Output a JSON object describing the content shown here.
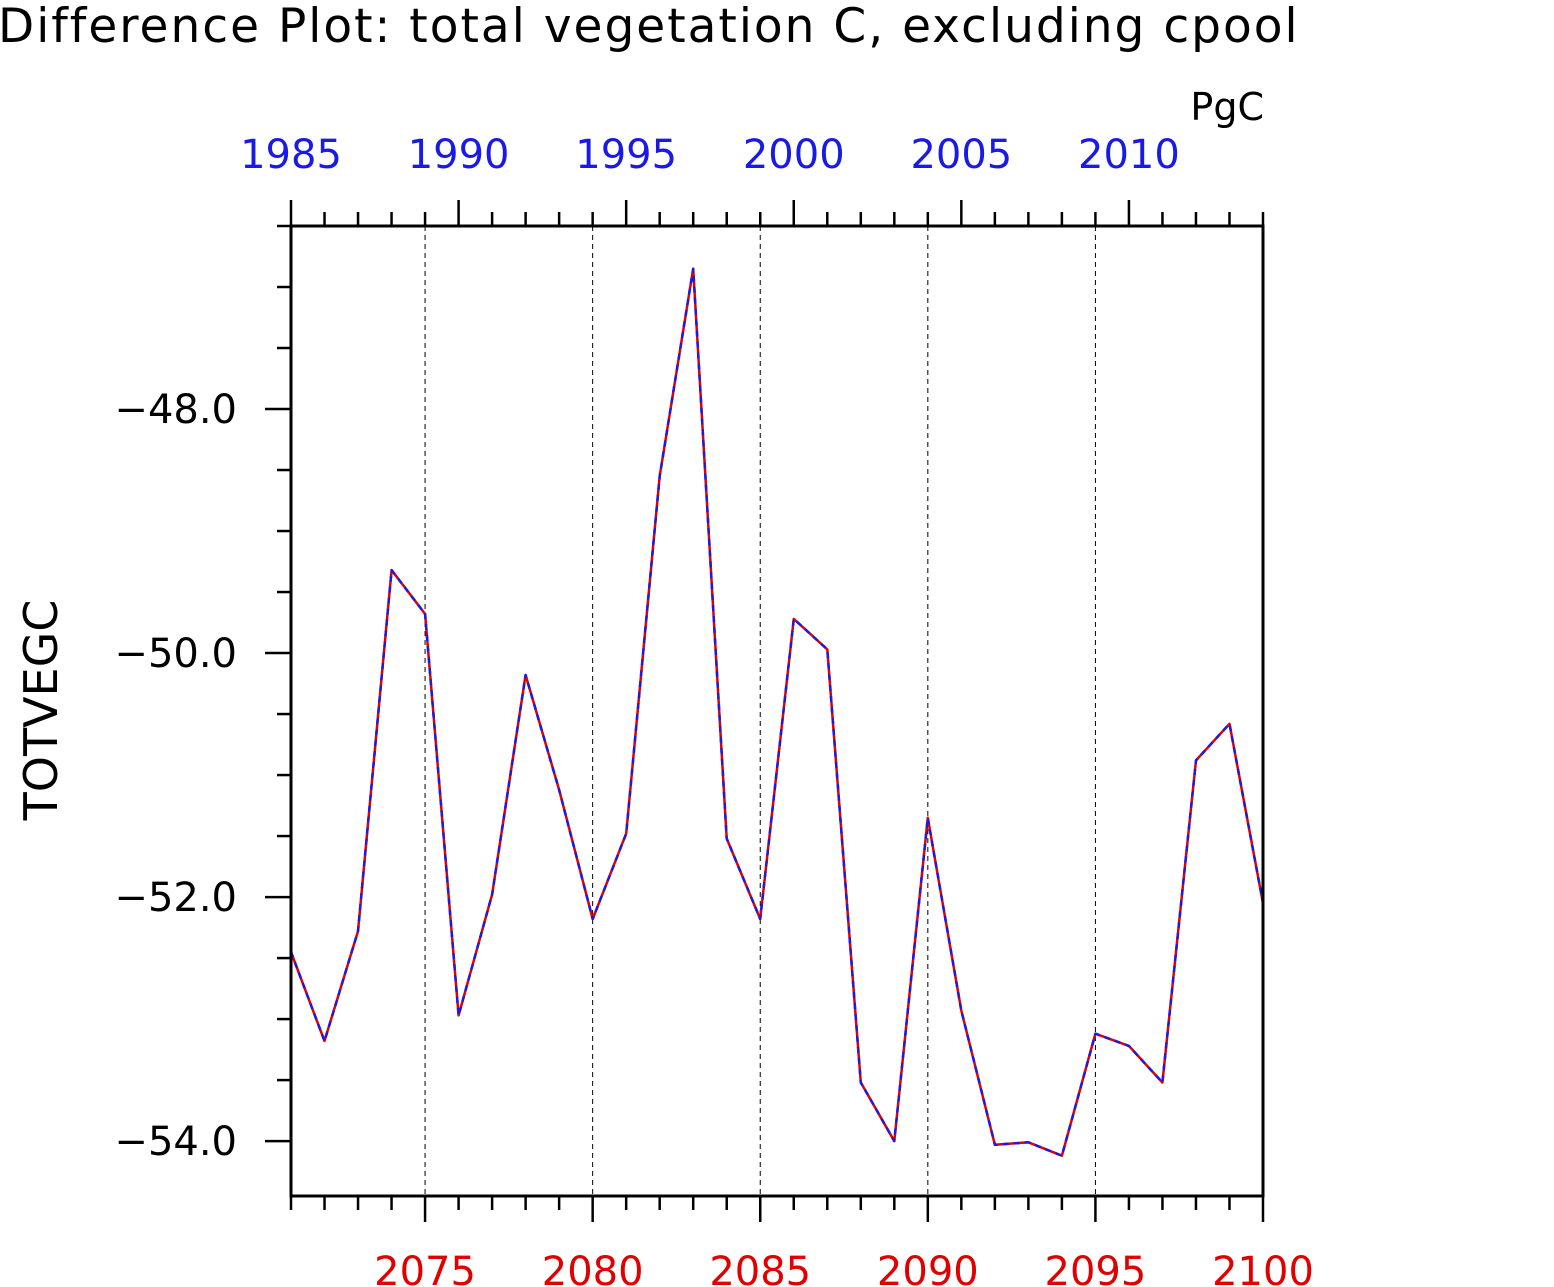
{
  "chart_data": {
    "type": "line",
    "title": "Difference Plot: total vegetation C, excluding cpool",
    "units": "PgC",
    "ylabel": "TOTVEGC",
    "ylim": [
      -54.45,
      -46.5
    ],
    "yticks": [
      -48.0,
      -50.0,
      -52.0,
      -54.0
    ],
    "ytick_labels": [
      "−48.0",
      "−50.0",
      "−52.0",
      "−54.0"
    ],
    "y_minor_step": 0.5,
    "x_bottom": {
      "color": "#e00000",
      "range": [
        2071,
        2100
      ],
      "ticks": [
        2075,
        2080,
        2085,
        2090,
        2095,
        2100
      ],
      "labels": [
        "2075",
        "2080",
        "2085",
        "2090",
        "2095",
        "2100"
      ]
    },
    "x_top": {
      "color": "#1a1ae6",
      "range": [
        1985,
        2014
      ],
      "ticks": [
        1985,
        1990,
        1995,
        2000,
        2005,
        2010
      ],
      "labels": [
        "1985",
        "1990",
        "1995",
        "2000",
        "2005",
        "2010"
      ]
    },
    "vertical_gridlines_at": [
      2075,
      2080,
      2085,
      2090,
      2095
    ],
    "grid": "vertical dashed",
    "series": [
      {
        "color": "#e00000",
        "style": "solid",
        "x": [
          2071,
          2072,
          2073,
          2074,
          2075,
          2076,
          2077,
          2078,
          2079,
          2080,
          2081,
          2082,
          2083,
          2084,
          2085,
          2086,
          2087,
          2088,
          2089,
          2090,
          2091,
          2092,
          2093,
          2094,
          2095,
          2096,
          2097,
          2098,
          2099,
          2100
        ],
        "values": [
          -52.45,
          -53.18,
          -52.28,
          -49.32,
          -49.68,
          -52.97,
          -51.98,
          -50.18,
          -51.12,
          -52.18,
          -51.48,
          -48.55,
          -46.85,
          -51.52,
          -52.18,
          -49.72,
          -49.97,
          -53.52,
          -54.0,
          -51.35,
          -52.93,
          -54.03,
          -54.01,
          -54.12,
          -53.12,
          -53.22,
          -53.52,
          -50.88,
          -50.58,
          -52.05
        ]
      },
      {
        "color": "#1a1ae6",
        "style": "dashed",
        "x": [
          1985,
          1986,
          1987,
          1988,
          1989,
          1990,
          1991,
          1992,
          1993,
          1994,
          1995,
          1996,
          1997,
          1998,
          1999,
          2000,
          2001,
          2002,
          2003,
          2004,
          2005,
          2006,
          2007,
          2008,
          2009,
          2010,
          2011,
          2012,
          2013,
          2014
        ],
        "values": [
          -52.45,
          -53.18,
          -52.28,
          -49.32,
          -49.68,
          -52.97,
          -51.98,
          -50.18,
          -51.12,
          -52.18,
          -51.48,
          -48.55,
          -46.85,
          -51.52,
          -52.18,
          -49.72,
          -49.97,
          -53.52,
          -54.0,
          -51.35,
          -52.93,
          -54.03,
          -54.01,
          -54.12,
          -53.12,
          -53.22,
          -53.52,
          -50.88,
          -50.58,
          -52.05
        ]
      }
    ]
  }
}
